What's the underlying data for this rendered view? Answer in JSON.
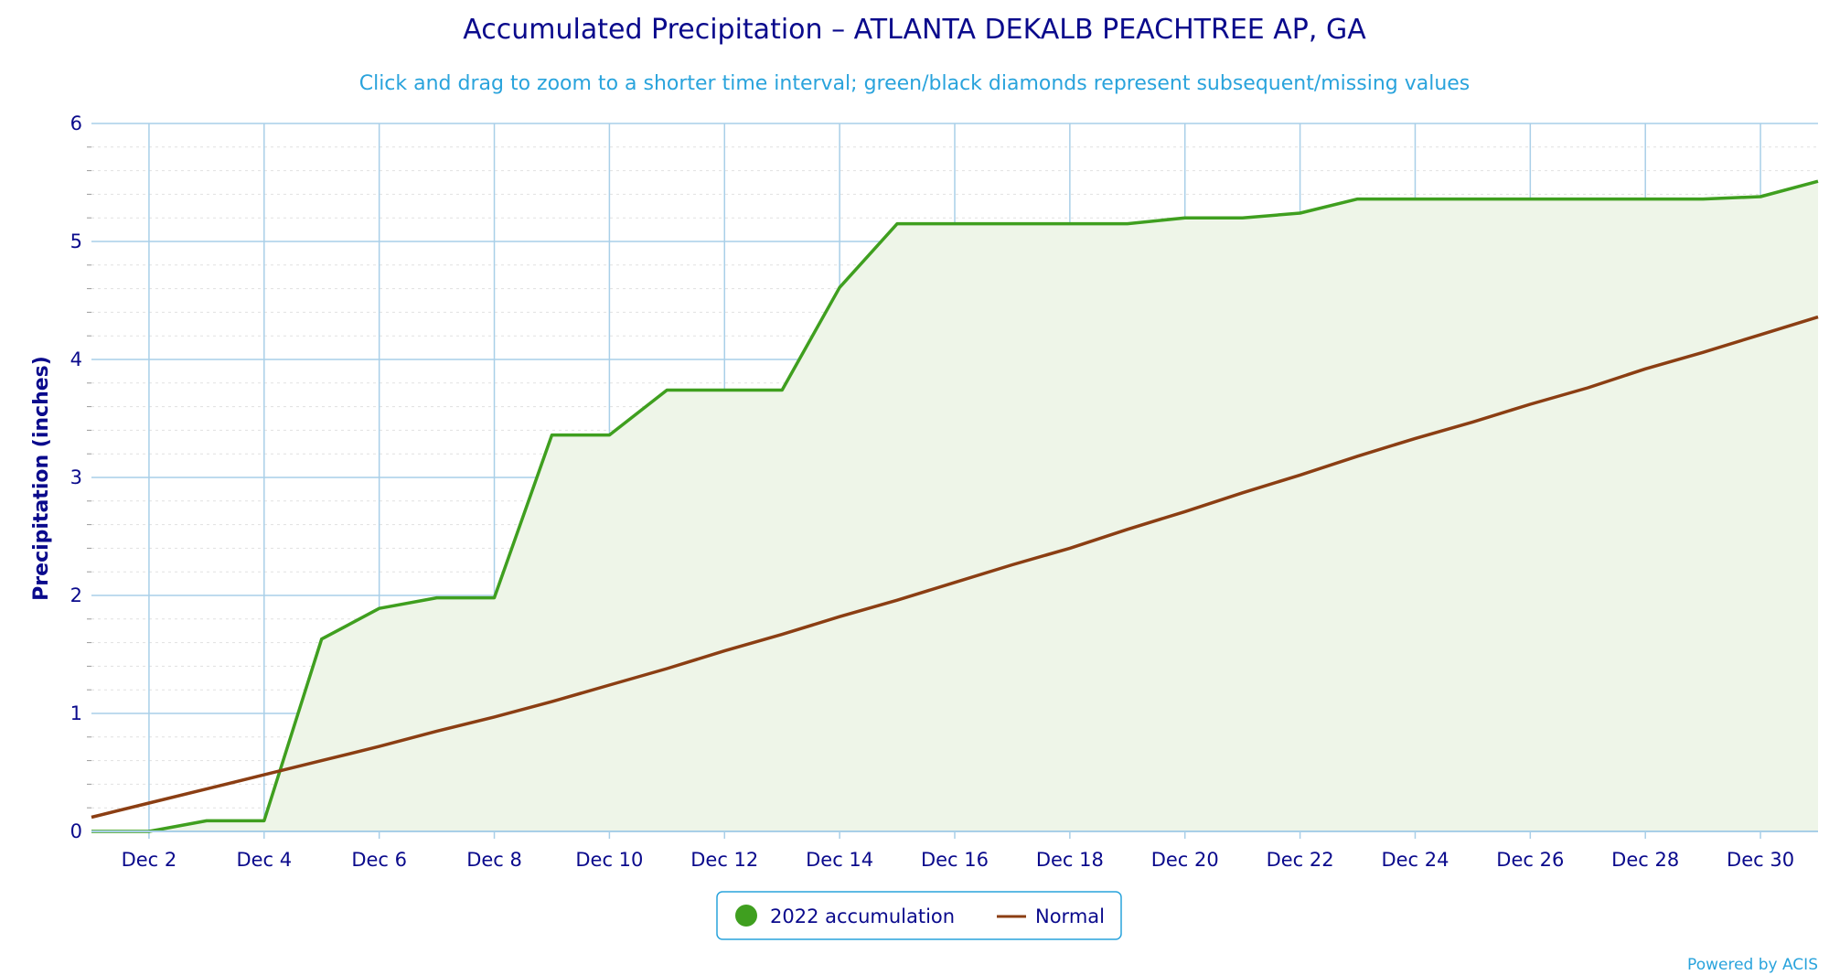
{
  "colors": {
    "title": "#0a0a8c",
    "subtitle": "#29a3dc",
    "axis_text": "#0a0a8c",
    "grid": "#a9cfe8",
    "minor_grid": "#e1e1e1",
    "accumulation_line": "#3f9f1f",
    "accumulation_fill": "#eef5e8",
    "normal_line": "#8b3e13",
    "legend_border": "#29a3dc",
    "credit": "#29a3dc"
  },
  "chart_data": {
    "type": "area",
    "title": "Accumulated Precipitation – ATLANTA DEKALB PEACHTREE AP, GA",
    "subtitle": "Click and drag to zoom to a shorter time interval; green/black diamonds represent subsequent/missing values",
    "xlabel": "",
    "ylabel": "Precipitation (inches)",
    "xlim": [
      1,
      31
    ],
    "ylim": [
      0,
      6
    ],
    "yticks": [
      0,
      1,
      2,
      3,
      4,
      5,
      6
    ],
    "xticks": [
      {
        "day": 2,
        "label": "Dec 2"
      },
      {
        "day": 4,
        "label": "Dec 4"
      },
      {
        "day": 6,
        "label": "Dec 6"
      },
      {
        "day": 8,
        "label": "Dec 8"
      },
      {
        "day": 10,
        "label": "Dec 10"
      },
      {
        "day": 12,
        "label": "Dec 12"
      },
      {
        "day": 14,
        "label": "Dec 14"
      },
      {
        "day": 16,
        "label": "Dec 16"
      },
      {
        "day": 18,
        "label": "Dec 18"
      },
      {
        "day": 20,
        "label": "Dec 20"
      },
      {
        "day": 22,
        "label": "Dec 22"
      },
      {
        "day": 24,
        "label": "Dec 24"
      },
      {
        "day": 26,
        "label": "Dec 26"
      },
      {
        "day": 28,
        "label": "Dec 28"
      },
      {
        "day": 30,
        "label": "Dec 30"
      }
    ],
    "series": [
      {
        "name": "2022 accumulation",
        "style": "area",
        "x": [
          1,
          2,
          3,
          4,
          5,
          6,
          7,
          8,
          9,
          10,
          11,
          12,
          13,
          14,
          15,
          16,
          17,
          18,
          19,
          20,
          21,
          22,
          23,
          24,
          25,
          26,
          27,
          28,
          29,
          30,
          31
        ],
        "values": [
          0.0,
          0.0,
          0.09,
          0.09,
          1.63,
          1.89,
          1.98,
          1.98,
          3.36,
          3.36,
          3.74,
          3.74,
          3.74,
          4.61,
          5.15,
          5.15,
          5.15,
          5.15,
          5.15,
          5.2,
          5.2,
          5.24,
          5.36,
          5.36,
          5.36,
          5.36,
          5.36,
          5.36,
          5.36,
          5.38,
          5.51
        ]
      },
      {
        "name": "Normal",
        "style": "line",
        "x": [
          1,
          2,
          3,
          4,
          5,
          6,
          7,
          8,
          9,
          10,
          11,
          12,
          13,
          14,
          15,
          16,
          17,
          18,
          19,
          20,
          21,
          22,
          23,
          24,
          25,
          26,
          27,
          28,
          29,
          30,
          31
        ],
        "values": [
          0.12,
          0.24,
          0.36,
          0.48,
          0.6,
          0.72,
          0.85,
          0.97,
          1.1,
          1.24,
          1.38,
          1.53,
          1.67,
          1.82,
          1.96,
          2.11,
          2.26,
          2.4,
          2.56,
          2.71,
          2.87,
          3.02,
          3.18,
          3.33,
          3.47,
          3.62,
          3.76,
          3.92,
          4.06,
          4.21,
          4.36
        ]
      }
    ],
    "legend": {
      "position": "bottom-center",
      "items": [
        {
          "label": "2022 accumulation",
          "symbol": "circle"
        },
        {
          "label": "Normal",
          "symbol": "line"
        }
      ]
    },
    "credit": "Powered by ACIS"
  }
}
